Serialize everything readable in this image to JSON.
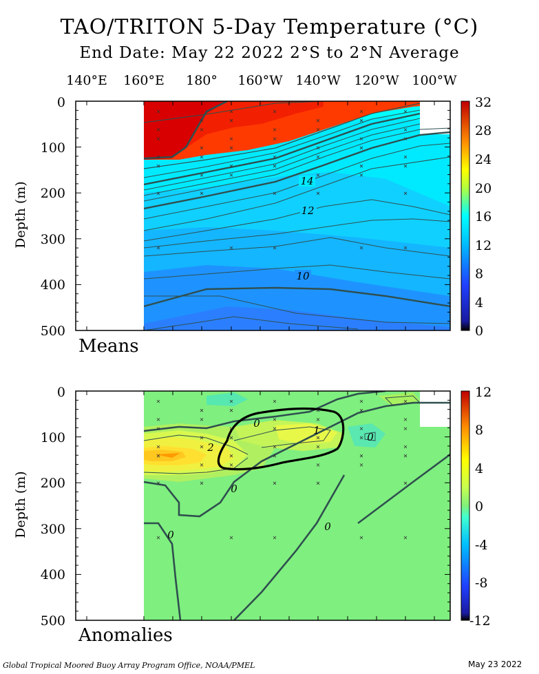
{
  "title": "TAO/TRITON 5-Day Temperature (°C)",
  "subtitle": "End Date: May 22 2022  2°S to 2°N Average",
  "x_tick_labels": [
    "140°E",
    "160°E",
    "180°",
    "160°W",
    "140°W",
    "120°W",
    "100°W"
  ],
  "footer_left": "Global Tropical Moored Buoy Array Program Office, NOAA/PMEL",
  "footer_right": "May 23 2022",
  "chart_data": [
    {
      "type": "heatmap",
      "panel_label": "Means",
      "ylabel": "Depth (m)",
      "y_ticks": [
        "0",
        "100",
        "200",
        "300",
        "400",
        "500"
      ],
      "ylim": [
        0,
        500
      ],
      "colorbar_ticks": [
        "32",
        "28",
        "24",
        "20",
        "16",
        "12",
        "8",
        "4",
        "0"
      ],
      "colorbar_range": [
        0,
        32
      ],
      "contour_labels": [
        {
          "text": "14",
          "lon": -140,
          "depth": 175
        },
        {
          "text": "12",
          "lon": -143,
          "depth": 238
        },
        {
          "text": "10",
          "lon": -143,
          "depth": 383
        }
      ],
      "isotherms": [
        {
          "value": 28,
          "points": [
            [
              160,
              125
            ],
            [
              172,
              120
            ],
            [
              180,
              70
            ],
            [
              200,
              20
            ],
            [
              230,
              5
            ]
          ]
        },
        {
          "value": 20,
          "points": [
            [
              160,
              155
            ],
            [
              180,
              140
            ],
            [
              200,
              125
            ],
            [
              220,
              95
            ],
            [
              240,
              65
            ],
            [
              262,
              35
            ]
          ]
        },
        {
          "value": 14,
          "points": [
            [
              160,
              190
            ],
            [
              180,
              175
            ],
            [
              200,
              160
            ],
            [
              220,
              130
            ],
            [
              240,
              100
            ],
            [
              262,
              65
            ],
            [
              280,
              40
            ]
          ]
        },
        {
          "value": 12,
          "points": [
            [
              160,
              280
            ],
            [
              180,
              270
            ],
            [
              200,
              255
            ],
            [
              220,
              240
            ],
            [
              240,
              245
            ],
            [
              262,
              255
            ],
            [
              280,
              300
            ],
            [
              288,
              315
            ]
          ]
        },
        {
          "value": 10,
          "points": [
            [
              160,
              370
            ],
            [
              180,
              380
            ],
            [
              200,
              390
            ],
            [
              220,
              395
            ],
            [
              240,
              400
            ],
            [
              262,
              410
            ],
            [
              288,
              420
            ]
          ]
        }
      ]
    },
    {
      "type": "heatmap",
      "panel_label": "Anomalies",
      "ylabel": "Depth (m)",
      "y_ticks": [
        "0",
        "100",
        "200",
        "300",
        "400",
        "500"
      ],
      "ylim": [
        0,
        500
      ],
      "colorbar_ticks": [
        "12",
        "8",
        "4",
        "0",
        "-4",
        "-8",
        "-12"
      ],
      "colorbar_range": [
        -12,
        12
      ],
      "contour_labels": [
        {
          "text": "0",
          "lon": -170,
          "depth": 72
        },
        {
          "text": "1",
          "lon": -140,
          "depth": 88
        },
        {
          "text": "2",
          "lon": 175,
          "depth": 122
        },
        {
          "text": "0",
          "lon": 180,
          "depth": 212
        },
        {
          "text": "0",
          "lon": 161,
          "depth": 312
        },
        {
          "text": "0",
          "lon": -140,
          "depth": 300
        },
        {
          "text": "0",
          "lon": -110,
          "depth": 95
        }
      ]
    }
  ]
}
